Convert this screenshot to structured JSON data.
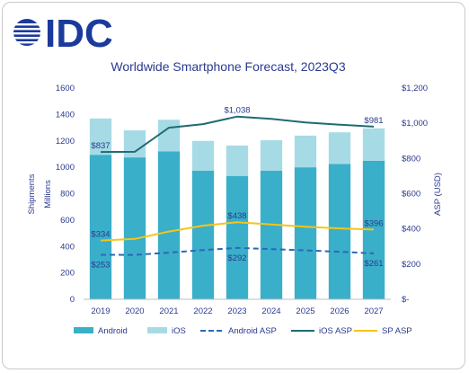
{
  "logo": {
    "text": "IDC",
    "color": "#1b3a9c"
  },
  "chart_data": {
    "type": "bar",
    "title": "Worldwide Smartphone Forecast, 2023Q3",
    "categories": [
      "2019",
      "2020",
      "2021",
      "2022",
      "2023",
      "2024",
      "2025",
      "2026",
      "2027"
    ],
    "ylabel_left": "Shipments\nMillions",
    "ylabel_right": "ASP (USD)",
    "ylim_left": [
      0,
      1600
    ],
    "ylim_right": [
      0,
      1200
    ],
    "yticks_left": [
      "0",
      "200",
      "400",
      "600",
      "800",
      "1000",
      "1200",
      "1400",
      "1600"
    ],
    "yticks_right": [
      "$-",
      "$200",
      "$400",
      "$600",
      "$800",
      "$1,000",
      "$1,200"
    ],
    "stacking": "stacked",
    "grid": false,
    "legend_position": "bottom",
    "series": [
      {
        "name": "Android",
        "axis": "left",
        "kind": "bar",
        "color": "#3aafc9",
        "values": [
          1095,
          1075,
          1120,
          975,
          935,
          975,
          1000,
          1025,
          1050
        ]
      },
      {
        "name": "iOS",
        "axis": "left",
        "kind": "bar",
        "color": "#a6dbe6",
        "values": [
          275,
          205,
          240,
          225,
          230,
          230,
          240,
          240,
          245
        ]
      },
      {
        "name": "Android ASP",
        "axis": "right",
        "kind": "line",
        "style": "dashed",
        "color": "#2a69b8",
        "values": [
          253,
          252,
          265,
          280,
          292,
          285,
          278,
          270,
          261
        ]
      },
      {
        "name": "iOS ASP",
        "axis": "right",
        "kind": "line",
        "style": "solid",
        "color": "#1f6b73",
        "values": [
          837,
          838,
          975,
          995,
          1038,
          1025,
          1005,
          992,
          981
        ]
      },
      {
        "name": "SP ASP",
        "axis": "right",
        "kind": "line",
        "style": "solid",
        "color": "#f5c518",
        "values": [
          334,
          343,
          385,
          418,
          438,
          425,
          412,
          403,
          396
        ]
      }
    ],
    "annotations": [
      {
        "series": "iOS ASP",
        "index": 0,
        "text": "$837"
      },
      {
        "series": "iOS ASP",
        "index": 4,
        "text": "$1,038"
      },
      {
        "series": "iOS ASP",
        "index": 8,
        "text": "$981"
      },
      {
        "series": "SP ASP",
        "index": 0,
        "text": "$334"
      },
      {
        "series": "SP ASP",
        "index": 4,
        "text": "$438"
      },
      {
        "series": "SP ASP",
        "index": 8,
        "text": "$396"
      },
      {
        "series": "Android ASP",
        "index": 0,
        "text": "$253"
      },
      {
        "series": "Android ASP",
        "index": 4,
        "text": "$292"
      },
      {
        "series": "Android ASP",
        "index": 8,
        "text": "$261"
      }
    ]
  }
}
